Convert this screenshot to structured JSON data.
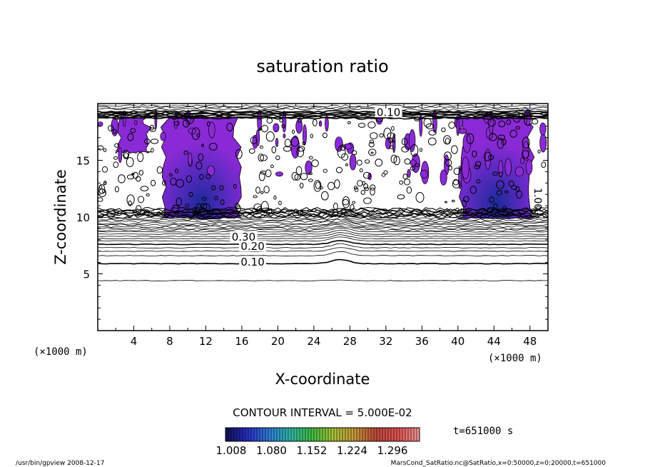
{
  "chart_data": {
    "type": "contour",
    "title": "saturation ratio",
    "xlabel": "X-coordinate",
    "ylabel": "Z-coordinate",
    "x_unit": "(×1000 m)",
    "x_unit_right": "(×1000 m)",
    "xlim": [
      0,
      50
    ],
    "ylim": [
      0,
      20
    ],
    "x_ticks": [
      4,
      8,
      12,
      16,
      20,
      24,
      28,
      32,
      36,
      40,
      44,
      48
    ],
    "y_ticks": [
      5,
      10,
      15
    ],
    "contour_labels": [
      {
        "text": "0.10",
        "x": 17.2,
        "z": 5.9
      },
      {
        "text": "0.20",
        "x": 17.2,
        "z": 7.3
      },
      {
        "text": "0.30",
        "x": 16.2,
        "z": 8.1
      },
      {
        "text": "0.10",
        "x": 32.3,
        "z": 19.1
      },
      {
        "text": "1.00",
        "x": 48.5,
        "z": 11.6
      }
    ],
    "contour_interval_text": "CONTOUR INTERVAL = 5.000E-02",
    "time_text": "t=651000 s",
    "colorbar": {
      "ticks": [
        "1.008",
        "1.080",
        "1.152",
        "1.224",
        "1.296"
      ],
      "range": [
        1.008,
        1.296
      ],
      "colors": [
        "#11125a",
        "#2a2fc8",
        "#2f7fd8",
        "#2fb8a8",
        "#3fbf3f",
        "#a8c23a",
        "#c89a3a",
        "#c04a3a",
        "#e05050",
        "#f09090"
      ]
    },
    "supersaturation_regions": [
      {
        "x": [
          2,
          6
        ],
        "z": [
          15.8,
          18.8
        ]
      },
      {
        "x": [
          7,
          16
        ],
        "z": [
          10.0,
          18.8
        ]
      },
      {
        "x": [
          40,
          48.5
        ],
        "z": [
          10.0,
          18.8
        ]
      }
    ]
  },
  "footer": {
    "left": "/usr/bin/gpview   2008-12-17",
    "right": "MarsCond_SatRatio.nc@SatRatio,x=0:50000,z=0:20000,t=651000"
  },
  "colors": {
    "fill": "#8a2ad6",
    "fill_core": "#1b2a9a",
    "line": "#000000"
  }
}
